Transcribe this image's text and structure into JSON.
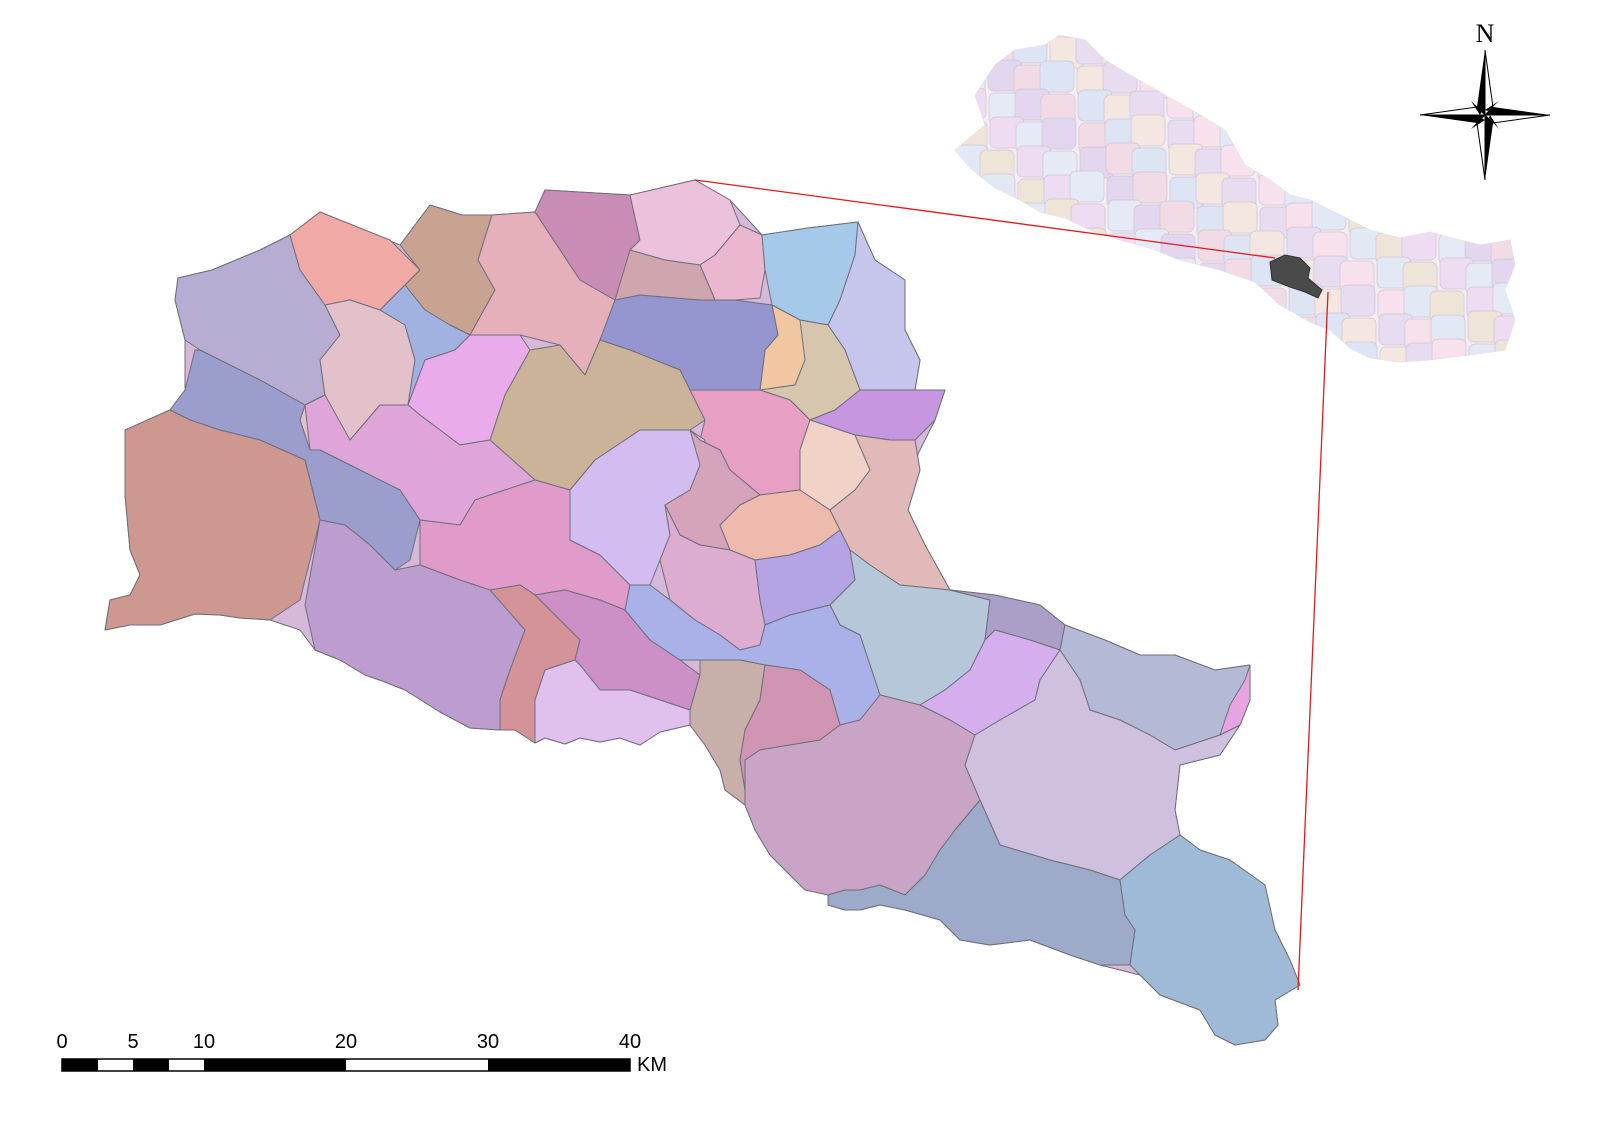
{
  "north_arrow": {
    "label": "N",
    "icon": "compass-rose-icon"
  },
  "scale_bar": {
    "ticks": [
      "0",
      "5",
      "10",
      "20",
      "30",
      "40"
    ],
    "unit": "KM"
  },
  "inset_map": {
    "highlight_color": "#4a4a4a",
    "connector_color": "#e41a1c"
  },
  "study_area": {
    "region_count": 46,
    "palette": [
      "#b7acd2",
      "#f0a9a5",
      "#c9a392",
      "#e6b0ba",
      "#c98db5",
      "#ecc1dc",
      "#eab7cf",
      "#a6c9ea",
      "#c6c6ed",
      "#f0c7a0",
      "#9595d0",
      "#cfa5ae",
      "#e2c1cb",
      "#a2b2e0",
      "#e9abea",
      "#cbb39a",
      "#d6c6ae",
      "#c796e0",
      "#e79fc3",
      "#dfa5d8",
      "#9b9dcd",
      "#cc9890",
      "#e09bca",
      "#d2bcf0",
      "#d5a4bb",
      "#eebaae",
      "#f0d3c6",
      "#e1b9b8",
      "#ddacd1",
      "#b4a3e5",
      "#b5c7d9",
      "#ab9ec7",
      "#d5aeed",
      "#b4bad6",
      "#bd9ccf",
      "#d39399",
      "#cc8fc6",
      "#aab0e8",
      "#e1c0ee",
      "#c8afaa",
      "#d095b2",
      "#c9a4c6",
      "#d0c0e0",
      "#9daac9",
      "#9fbad6",
      "#e7a4e2"
    ]
  }
}
